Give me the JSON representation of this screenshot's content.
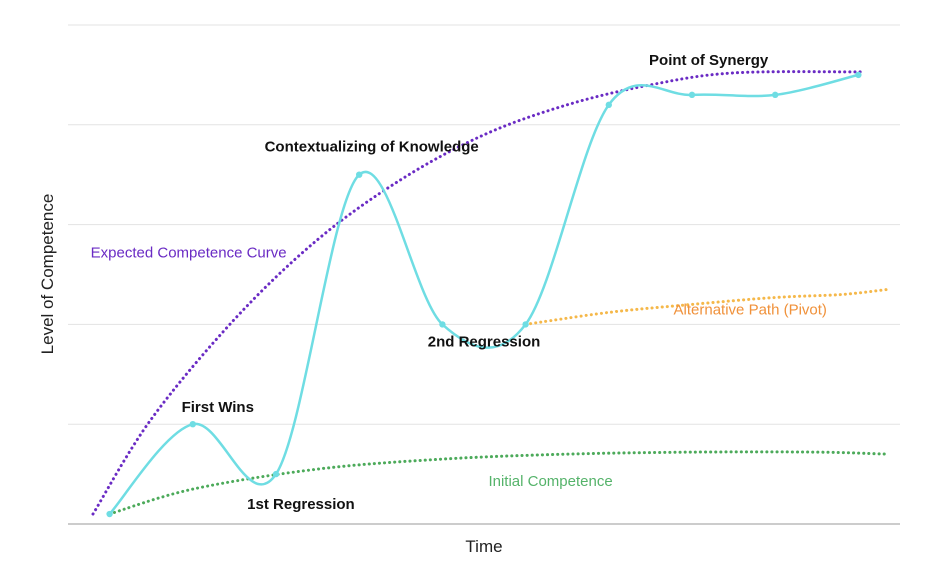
{
  "chart_data": {
    "type": "line",
    "title": "",
    "xlabel": "Time",
    "ylabel": "Level of Competence",
    "xlim": [
      0,
      10
    ],
    "ylim": [
      0,
      5
    ],
    "grid": true,
    "series": [
      {
        "name": "Expected Competence Curve",
        "style": "dotted",
        "color": "#6a2bc4",
        "points": [
          [
            0.3,
            0.1
          ],
          [
            1,
            1.05
          ],
          [
            2,
            2.05
          ],
          [
            3,
            2.85
          ],
          [
            4,
            3.45
          ],
          [
            5,
            3.9
          ],
          [
            6,
            4.2
          ],
          [
            7,
            4.4
          ],
          [
            8,
            4.52
          ],
          [
            9.55,
            4.53
          ]
        ]
      },
      {
        "name": "Initial Competence",
        "style": "dotted",
        "color": "#4caa5a",
        "points": [
          [
            0.5,
            0.1
          ],
          [
            1.5,
            0.35
          ],
          [
            3,
            0.55
          ],
          [
            4.5,
            0.65
          ],
          [
            6,
            0.7
          ],
          [
            7.5,
            0.72
          ],
          [
            9,
            0.72
          ],
          [
            9.85,
            0.7
          ]
        ]
      },
      {
        "name": "Alternative Path (Pivot)",
        "style": "dotted",
        "color": "#f5b84a",
        "points": [
          [
            5.5,
            2.0
          ],
          [
            6.5,
            2.12
          ],
          [
            7.5,
            2.2
          ],
          [
            8.5,
            2.27
          ],
          [
            9.3,
            2.3
          ],
          [
            9.85,
            2.35
          ]
        ]
      },
      {
        "name": "",
        "style": "solid",
        "color": "#6fdde3",
        "points": [
          [
            0.5,
            0.1
          ],
          [
            1.5,
            1.0
          ],
          [
            2.5,
            0.5
          ],
          [
            3.5,
            3.5
          ],
          [
            4.5,
            2.0
          ],
          [
            5.5,
            2.0
          ],
          [
            6.5,
            4.2
          ],
          [
            7.5,
            4.3
          ],
          [
            8.5,
            4.3
          ],
          [
            9.5,
            4.5
          ]
        ]
      }
    ],
    "annotations": [
      {
        "text": "Point of Synergy",
        "x": 7.7,
        "y": 4.6
      },
      {
        "text": "Contextualizing of Knowledge",
        "x": 3.65,
        "y": 3.73
      },
      {
        "text": "First Wins",
        "x": 1.8,
        "y": 1.12
      },
      {
        "text": "1st Regression",
        "x": 2.8,
        "y": 0.15
      },
      {
        "text": "2nd Regression",
        "x": 5.0,
        "y": 1.78
      },
      {
        "text": "Expected Competence Curve",
        "x": 1.45,
        "y": 2.67,
        "color": "#6a2bc4"
      },
      {
        "text": "Alternative Path (Pivot)",
        "x": 8.2,
        "y": 2.1,
        "color": "#f0913a"
      },
      {
        "text": "Initial Competence",
        "x": 5.8,
        "y": 0.38,
        "color": "#55b36a"
      }
    ]
  }
}
